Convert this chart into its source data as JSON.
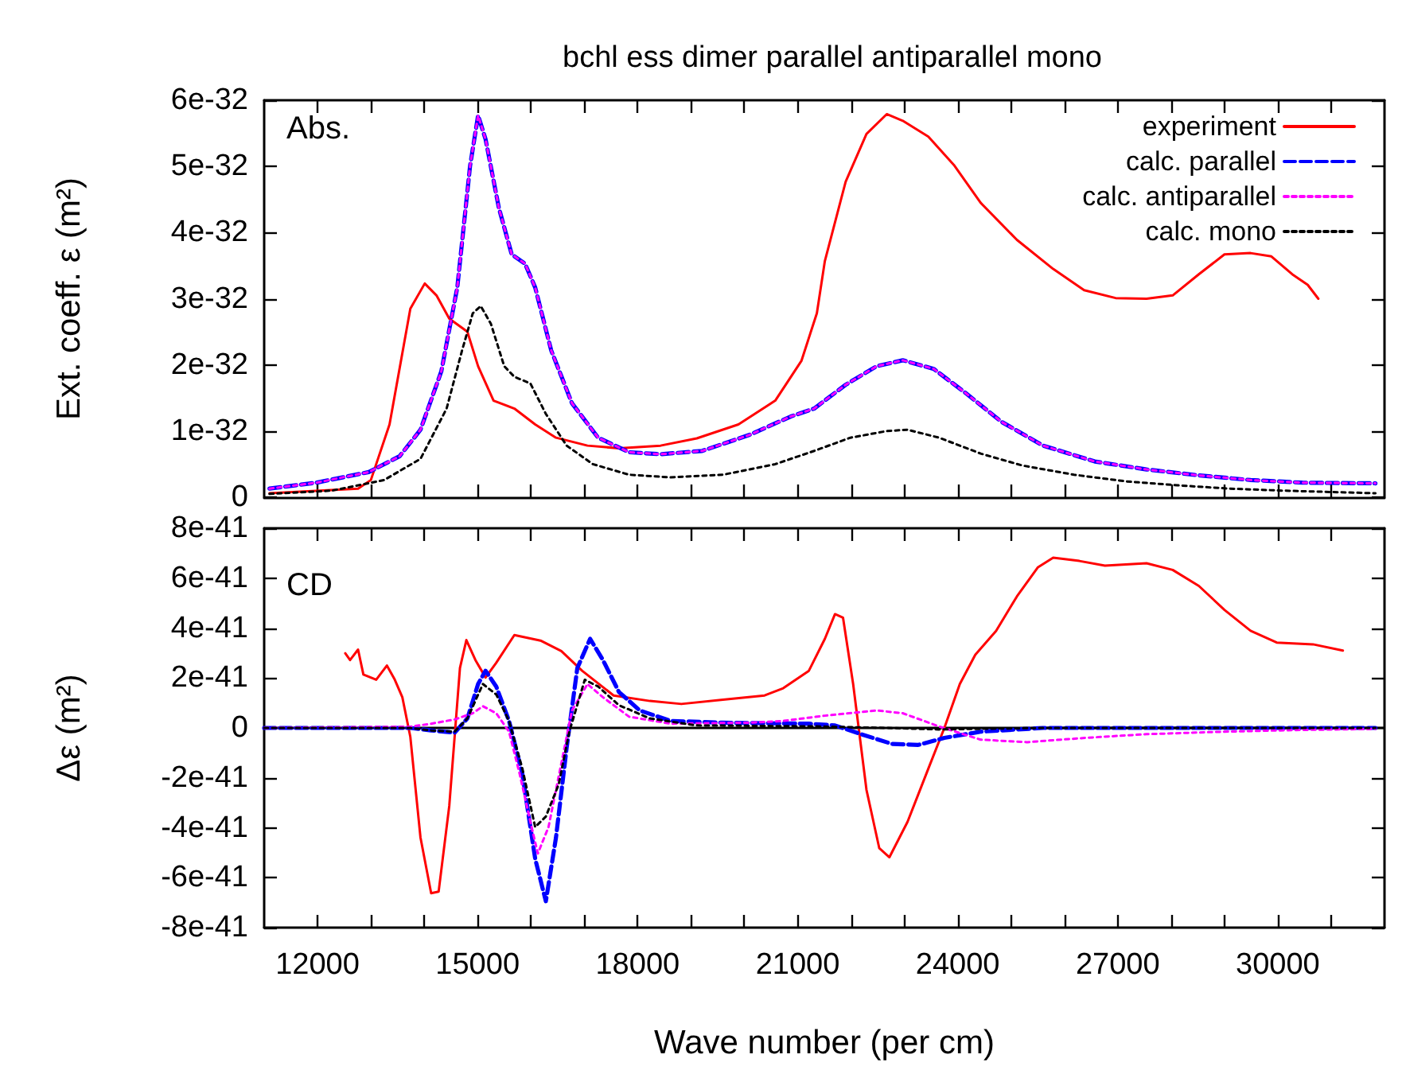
{
  "chart_data": [
    {
      "type": "line",
      "title": "bchl ess dimer parallel antiparallel mono",
      "ylabel": "Ext. coeff. ε (m²)",
      "annotations": [
        "Abs."
      ],
      "legend": "top right",
      "grid": false,
      "tick_labels": "y",
      "xlim": [
        11000,
        32000
      ],
      "xticks": [
        {
          "value": 12000,
          "label": null
        },
        {
          "value": 13000,
          "label": null
        },
        {
          "value": 14000,
          "label": null
        },
        {
          "value": 15000,
          "label": null
        },
        {
          "value": 16000,
          "label": null
        },
        {
          "value": 17000,
          "label": null
        },
        {
          "value": 18000,
          "label": null
        },
        {
          "value": 19000,
          "label": null
        },
        {
          "value": 20000,
          "label": null
        },
        {
          "value": 21000,
          "label": null
        },
        {
          "value": 22000,
          "label": null
        },
        {
          "value": 23000,
          "label": null
        },
        {
          "value": 24000,
          "label": null
        },
        {
          "value": 25000,
          "label": null
        },
        {
          "value": 26000,
          "label": null
        },
        {
          "value": 27000,
          "label": null
        },
        {
          "value": 28000,
          "label": null
        },
        {
          "value": 29000,
          "label": null
        },
        {
          "value": 30000,
          "label": null
        },
        {
          "value": 31000,
          "label": null
        }
      ],
      "ylim": [
        0,
        6e-32
      ],
      "yticks": [
        0,
        {
          "value": 1e-32,
          "label": "1e-32"
        },
        {
          "value": 2e-32,
          "label": "2e-32"
        },
        {
          "value": 3e-32,
          "label": "3e-32"
        },
        {
          "value": 4e-32,
          "label": "4e-32"
        },
        {
          "value": 5e-32,
          "label": "5e-32"
        },
        {
          "value": 6e-32,
          "label": "6e-32"
        }
      ],
      "series": [
        {
          "name": "experiment",
          "color": "#ff0000",
          "line_style": "solid",
          "x": [
            11100,
            12760,
            13000,
            13350,
            13740,
            14010,
            14230,
            14470,
            14810,
            15010,
            15300,
            15690,
            16080,
            16470,
            17060,
            17650,
            18430,
            19110,
            19890,
            20580,
            21070,
            21360,
            21510,
            21900,
            22290,
            22670,
            22970,
            23450,
            23940,
            24430,
            25110,
            25790,
            26370,
            26960,
            27540,
            28030,
            28520,
            29000,
            29490,
            29880,
            30270,
            30560,
            30760
          ],
          "values": [
            6e-34,
            1.3e-33,
            2.6e-33,
            1.1e-32,
            2.85e-32,
            3.23e-32,
            3.05e-32,
            2.7e-32,
            2.5e-32,
            1.98e-32,
            1.46e-32,
            1.34e-32,
            1.1e-32,
            9e-33,
            7.8e-33,
            7.4e-33,
            7.8e-33,
            8.9e-33,
            1.1e-32,
            1.46e-32,
            2.06e-32,
            2.78e-32,
            3.57e-32,
            4.77e-32,
            5.49e-32,
            5.79e-32,
            5.69e-32,
            5.45e-32,
            5.01e-32,
            4.45e-32,
            3.89e-32,
            3.45e-32,
            3.13e-32,
            3.01e-32,
            3e-32,
            3.05e-32,
            3.37e-32,
            3.67e-32,
            3.69e-32,
            3.64e-32,
            3.37e-32,
            3.21e-32,
            3e-32
          ]
        },
        {
          "name": "calc. parallel",
          "color": "#0000ff",
          "line_style": "dashed",
          "x": [
            11100,
            11980,
            12960,
            13540,
            13930,
            14320,
            14620,
            14860,
            15010,
            15150,
            15400,
            15640,
            15890,
            16080,
            16380,
            16770,
            17260,
            17840,
            18430,
            19210,
            20090,
            20870,
            21310,
            21900,
            22480,
            22970,
            23550,
            24140,
            24820,
            25600,
            26570,
            27540,
            28520,
            29490,
            30460,
            31830
          ],
          "values": [
            1.3e-33,
            2.2e-33,
            3.8e-33,
            6.2e-33,
            1.02e-32,
            1.9e-32,
            3.17e-32,
            5.01e-32,
            5.77e-32,
            5.41e-32,
            4.37e-32,
            3.67e-32,
            3.53e-32,
            3.17e-32,
            2.22e-32,
            1.42e-32,
            9e-33,
            6.8e-33,
            6.5e-33,
            7e-33,
            9.4e-33,
            1.22e-32,
            1.34e-32,
            1.7e-32,
            1.98e-32,
            2.07e-32,
            1.94e-32,
            1.58e-32,
            1.14e-32,
            7.8e-33,
            5.4e-33,
            4.2e-33,
            3.3e-33,
            2.6e-33,
            2.2e-33,
            2.1e-33
          ]
        },
        {
          "name": "calc. antiparallel",
          "color": "#ff00ff",
          "line_style": "dotted",
          "x": [
            11100,
            11980,
            12960,
            13540,
            13930,
            14320,
            14620,
            14860,
            15010,
            15150,
            15400,
            15640,
            15890,
            16080,
            16380,
            16770,
            17260,
            17840,
            18430,
            19210,
            20090,
            20870,
            21310,
            21900,
            22480,
            22970,
            23550,
            24140,
            24820,
            25600,
            26570,
            27540,
            28520,
            29490,
            30460,
            31830
          ],
          "values": [
            1.3e-33,
            2.2e-33,
            3.8e-33,
            6.2e-33,
            1.02e-32,
            1.9e-32,
            3.17e-32,
            5.01e-32,
            5.77e-32,
            5.41e-32,
            4.37e-32,
            3.67e-32,
            3.53e-32,
            3.17e-32,
            2.22e-32,
            1.42e-32,
            9e-33,
            6.8e-33,
            6.5e-33,
            7e-33,
            9.4e-33,
            1.22e-32,
            1.34e-32,
            1.7e-32,
            1.98e-32,
            2.07e-32,
            1.94e-32,
            1.58e-32,
            1.14e-32,
            7.8e-33,
            5.4e-33,
            4.2e-33,
            3.3e-33,
            2.6e-33,
            2.2e-33,
            2.1e-33
          ]
        },
        {
          "name": "calc. mono",
          "color": "#000000",
          "line_style": "dotted",
          "x": [
            11100,
            12270,
            13250,
            13930,
            14420,
            14710,
            14910,
            15060,
            15250,
            15500,
            15690,
            15990,
            16280,
            16670,
            17160,
            17840,
            18620,
            19600,
            20580,
            21310,
            21990,
            22670,
            23060,
            23650,
            24430,
            25210,
            26180,
            27150,
            28120,
            29100,
            30070,
            31830
          ],
          "values": [
            5e-34,
            1e-33,
            2.6e-33,
            5.8e-33,
            1.34e-32,
            2.22e-32,
            2.78e-32,
            2.89e-32,
            2.62e-32,
            1.98e-32,
            1.82e-32,
            1.72e-32,
            1.26e-32,
            7.8e-33,
            5e-33,
            3.4e-33,
            3e-33,
            3.4e-33,
            5e-33,
            7e-33,
            9e-33,
            1e-32,
            1.02e-32,
            9e-33,
            6.6e-33,
            4.8e-33,
            3.4e-33,
            2.4e-33,
            1.8e-33,
            1.3e-33,
            1e-33,
            6e-34
          ]
        }
      ]
    },
    {
      "type": "line",
      "xlabel": "Wave number (per cm)",
      "ylabel": "Δε (m²)",
      "annotations": [
        "CD"
      ],
      "grid": false,
      "xlim": [
        11000,
        32000
      ],
      "xticks": [
        {
          "value": 12000,
          "label": "12000"
        },
        {
          "value": 13000,
          "label": null
        },
        {
          "value": 14000,
          "label": null
        },
        {
          "value": 15000,
          "label": "15000"
        },
        {
          "value": 16000,
          "label": null
        },
        {
          "value": 17000,
          "label": null
        },
        {
          "value": 18000,
          "label": "18000"
        },
        {
          "value": 19000,
          "label": null
        },
        {
          "value": 20000,
          "label": null
        },
        {
          "value": 21000,
          "label": "21000"
        },
        {
          "value": 22000,
          "label": null
        },
        {
          "value": 23000,
          "label": null
        },
        {
          "value": 24000,
          "label": "24000"
        },
        {
          "value": 25000,
          "label": null
        },
        {
          "value": 26000,
          "label": null
        },
        {
          "value": 27000,
          "label": "27000"
        },
        {
          "value": 28000,
          "label": null
        },
        {
          "value": 29000,
          "label": null
        },
        {
          "value": 30000,
          "label": "30000"
        },
        {
          "value": 31000,
          "label": null
        }
      ],
      "ylim": [
        -8e-41,
        8e-41
      ],
      "yticks": [
        {
          "value": -8e-41,
          "label": "-8e-41"
        },
        {
          "value": -6e-41,
          "label": "-6e-41"
        },
        {
          "value": -4e-41,
          "label": "-4e-41"
        },
        {
          "value": -2e-41,
          "label": "-2e-41"
        },
        0,
        {
          "value": 2e-41,
          "label": "2e-41"
        },
        {
          "value": 4e-41,
          "label": "4e-41"
        },
        {
          "value": 6e-41,
          "label": "6e-41"
        },
        {
          "value": 8e-41,
          "label": "8e-41"
        }
      ],
      "ref_lines": [
        {
          "axis": "y",
          "value": 0,
          "color": "#000000"
        }
      ],
      "series": [
        {
          "color": "#ff0000",
          "line_style": "solid",
          "x": [
            12520,
            12610,
            12760,
            12860,
            13100,
            13300,
            13440,
            13590,
            13740,
            13930,
            14130,
            14270,
            14470,
            14670,
            14790,
            14960,
            15150,
            15350,
            15690,
            16180,
            16570,
            16960,
            17550,
            18230,
            18820,
            19600,
            20380,
            20730,
            21210,
            21510,
            21700,
            21850,
            22040,
            22290,
            22530,
            22720,
            23060,
            23450,
            23750,
            24040,
            24330,
            24720,
            25110,
            25500,
            25790,
            26280,
            26760,
            27540,
            28030,
            28520,
            29000,
            29490,
            29980,
            30660,
            31220
          ],
          "values": [
            2.99e-41,
            2.72e-41,
            3.14e-41,
            2.14e-41,
            1.93e-41,
            2.5e-41,
            1.97e-41,
            1.23e-41,
            -3.6e-42,
            -4.39e-41,
            -6.62e-41,
            -6.56e-41,
            -3.12e-41,
            2.4e-41,
            3.52e-41,
            2.72e-41,
            2.02e-41,
            2.61e-41,
            3.72e-41,
            3.5e-41,
            3.08e-41,
            2.29e-41,
            1.3e-41,
            1.08e-41,
            9.6e-42,
            1.13e-41,
            1.3e-41,
            1.59e-41,
            2.29e-41,
            3.57e-41,
            4.56e-41,
            4.42e-41,
            1.76e-41,
            -2.48e-41,
            -4.82e-41,
            -5.18e-41,
            -3.76e-41,
            -1.63e-41,
            0,
            1.76e-41,
            2.93e-41,
            3.89e-41,
            5.27e-41,
            6.43e-41,
            6.82e-41,
            6.69e-41,
            6.5e-41,
            6.6e-41,
            6.33e-41,
            5.69e-41,
            4.73e-41,
            3.89e-41,
            3.42e-41,
            3.35e-41,
            3.1e-41
          ]
        },
        {
          "color": "#0000ff",
          "line_style": "dashed",
          "x": [
            11000,
            13740,
            14130,
            14570,
            14810,
            15010,
            15150,
            15350,
            15590,
            15840,
            16080,
            16280,
            16470,
            16670,
            16870,
            17110,
            17350,
            17650,
            18040,
            18620,
            19600,
            21210,
            21700,
            22190,
            22770,
            23260,
            23750,
            24430,
            25600,
            31830
          ],
          "values": [
            0,
            0,
            -1e-42,
            -1.9e-42,
            3.8e-42,
            1.76e-41,
            2.29e-41,
            1.66e-41,
            2.8e-42,
            -1.85e-41,
            -5.24e-41,
            -6.94e-41,
            -4.39e-41,
            -7.9e-42,
            2.4e-41,
            3.57e-41,
            2.72e-41,
            1.44e-41,
            7e-42,
            2.8e-42,
            2.1e-42,
            1.7e-42,
            1e-42,
            -2.5e-42,
            -6.4e-42,
            -6.8e-42,
            -4e-42,
            -1.5e-42,
            0,
            0
          ]
        },
        {
          "color": "#ff00ff",
          "line_style": "dotted",
          "x": [
            11000,
            13740,
            14130,
            14570,
            14910,
            15100,
            15350,
            15590,
            15790,
            15990,
            16130,
            16330,
            16570,
            16770,
            17060,
            17350,
            17840,
            18620,
            20090,
            20730,
            21510,
            22480,
            22970,
            23650,
            24430,
            25300,
            26380,
            27540,
            29000,
            30460,
            31830
          ],
          "values": [
            0,
            5e-43,
            1.7e-42,
            3.4e-42,
            5.9e-42,
            8.7e-42,
            5.9e-42,
            -1.5e-42,
            -1.85e-41,
            -3.76e-41,
            -5.03e-41,
            -3.97e-41,
            -1.42e-41,
            7e-42,
            1.76e-41,
            1.23e-41,
            4.5e-42,
            1.7e-42,
            2.1e-42,
            2.8e-42,
            4.9e-42,
            7e-42,
            5.9e-42,
            6e-43,
            -4.7e-42,
            -5.7e-42,
            -4e-42,
            -2.5e-42,
            -1.5e-42,
            -8e-43,
            -4e-43
          ]
        },
        {
          "color": "#000000",
          "line_style": "dotted",
          "x": [
            11000,
            13740,
            14130,
            14570,
            14810,
            15100,
            15350,
            15590,
            15840,
            16080,
            16280,
            16520,
            16720,
            17010,
            17260,
            17650,
            18230,
            19110,
            21360,
            22670,
            23650,
            25600,
            31830
          ],
          "values": [
            0,
            0,
            -1e-42,
            -1.5e-42,
            3.8e-42,
            1.76e-41,
            1.34e-41,
            2.8e-42,
            -1.63e-41,
            -3.97e-41,
            -3.55e-41,
            -2.27e-41,
            -1.5e-42,
            1.93e-41,
            1.66e-41,
            9.1e-42,
            3.8e-42,
            1e-42,
            6e-43,
            0,
            -6e-43,
            0,
            0
          ]
        }
      ]
    }
  ]
}
